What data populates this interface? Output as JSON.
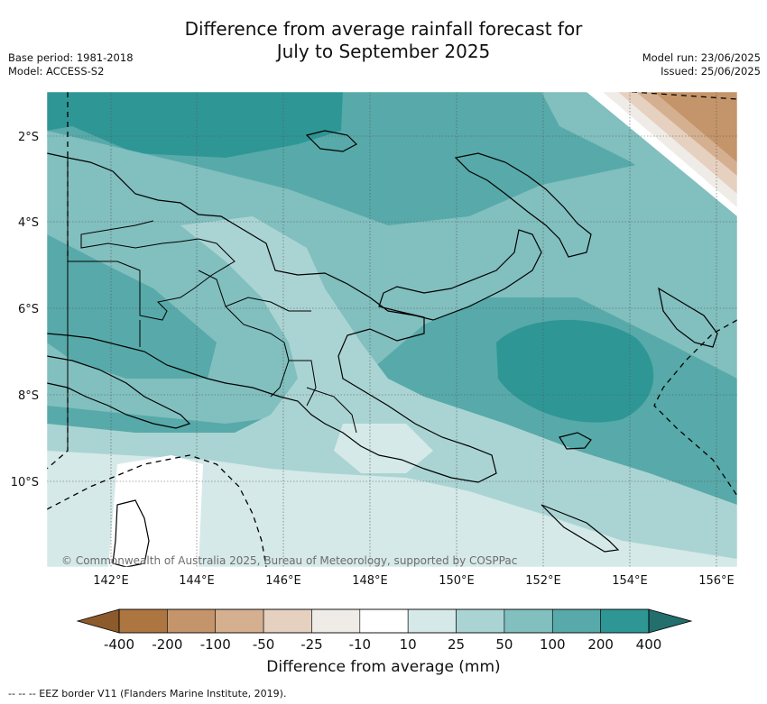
{
  "title_line1": "Difference from average rainfall forecast for",
  "title_line2": "July to September 2025",
  "base_period": "Base period: 1981-2018",
  "model": "Model: ACCESS-S2",
  "model_run": "Model run: 23/06/2025",
  "issued": "Issued: 25/06/2025",
  "copyright": "© Commonwealth of Australia 2025, Bureau of Meteorology, supported by COSPPac",
  "lat_labels": [
    "2°S",
    "4°S",
    "6°S",
    "8°S",
    "10°S"
  ],
  "lon_labels": [
    "142°E",
    "144°E",
    "146°E",
    "148°E",
    "150°E",
    "152°E",
    "154°E",
    "156°E"
  ],
  "colorbar": {
    "title": "Difference from average (mm)",
    "tick_labels": [
      "-400",
      "-200",
      "-100",
      "-50",
      "-25",
      "-10",
      "10",
      "25",
      "50",
      "100",
      "200",
      "400"
    ],
    "colors": [
      "#8c5a2b",
      "#ad7640",
      "#c4956a",
      "#d4b090",
      "#e6d0bf",
      "#efece8",
      "#ffffff",
      "#d5e9e8",
      "#aad4d3",
      "#82bfbf",
      "#57aaa9",
      "#2e9796",
      "#236f6e"
    ]
  },
  "legend_footer": "-- --  -- EEZ border V11 (Flanders Marine Institute, 2019)."
}
